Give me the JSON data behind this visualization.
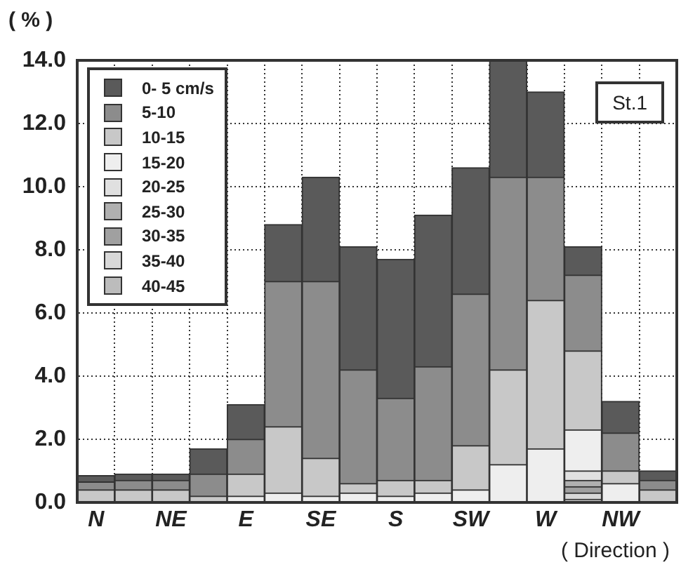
{
  "chart_data": {
    "type": "bar",
    "stacked": true,
    "ylabel": "( % )",
    "xlabel": "( Direction )",
    "annotations": [
      "St.1"
    ],
    "categories": [
      "N",
      null,
      "NE",
      null,
      "E",
      null,
      "SE",
      null,
      "S",
      null,
      "SW",
      null,
      "W",
      null,
      "NW",
      null
    ],
    "ylim": [
      0,
      14
    ],
    "yticks": [
      {
        "value": 0,
        "label": "0.0"
      },
      {
        "value": 2,
        "label": "2.0"
      },
      {
        "value": 4,
        "label": "4.0"
      },
      {
        "value": 6,
        "label": "6.0"
      },
      {
        "value": 8,
        "label": "8.0"
      },
      {
        "value": 10,
        "label": "10.0"
      },
      {
        "value": 12,
        "label": "12.0"
      },
      {
        "value": 14,
        "label": "14.0"
      }
    ],
    "grid": true,
    "line_style": "dotted",
    "legend": "top left",
    "series": [
      {
        "name": "40-45",
        "color": "#bcbcbc",
        "values": [
          0,
          0,
          0,
          0,
          0,
          0,
          0,
          0,
          0,
          0,
          0,
          0,
          0,
          0.1,
          0,
          0
        ]
      },
      {
        "name": "35-40",
        "color": "#d8d8d8",
        "values": [
          0,
          0,
          0,
          0,
          0,
          0,
          0,
          0,
          0,
          0,
          0,
          0,
          0,
          0.2,
          0,
          0
        ]
      },
      {
        "name": "30-35",
        "color": "#a0a0a0",
        "values": [
          0,
          0,
          0,
          0,
          0,
          0,
          0,
          0,
          0,
          0,
          0,
          0,
          0,
          0.2,
          0,
          0
        ]
      },
      {
        "name": "25-30",
        "color": "#b0b0b0",
        "values": [
          0,
          0,
          0,
          0,
          0,
          0,
          0,
          0,
          0,
          0,
          0,
          0,
          0,
          0.2,
          0,
          0
        ]
      },
      {
        "name": "20-25",
        "color": "#e0e0e0",
        "values": [
          0,
          0,
          0,
          0,
          0,
          0,
          0,
          0,
          0,
          0,
          0,
          0,
          0,
          0.3,
          0,
          0
        ]
      },
      {
        "name": "15-20",
        "color": "#eeeeee",
        "values": [
          0,
          0,
          0,
          0,
          0.2,
          0.3,
          0.2,
          0.3,
          0.2,
          0.3,
          0.4,
          1.2,
          1.7,
          1.3,
          0.6,
          0
        ]
      },
      {
        "name": "10-15",
        "color": "#c8c8c8",
        "values": [
          0.4,
          0.4,
          0.4,
          0.2,
          0.7,
          2.1,
          1.2,
          0.3,
          0.5,
          0.4,
          1.4,
          3.0,
          4.7,
          2.5,
          0.4,
          0.4
        ]
      },
      {
        "name": "5-10",
        "color": "#8c8c8c",
        "values": [
          0.25,
          0.3,
          0.3,
          0.7,
          1.1,
          4.6,
          5.6,
          3.6,
          2.6,
          3.6,
          4.8,
          6.1,
          3.9,
          2.4,
          1.2,
          0.3
        ]
      },
      {
        "name": "0- 5 cm/s",
        "color": "#5a5a5a",
        "values": [
          0.2,
          0.2,
          0.2,
          0.8,
          1.1,
          1.8,
          3.3,
          3.9,
          4.4,
          4.8,
          4.0,
          3.7,
          2.7,
          0.9,
          1.0,
          0.3
        ]
      }
    ]
  }
}
